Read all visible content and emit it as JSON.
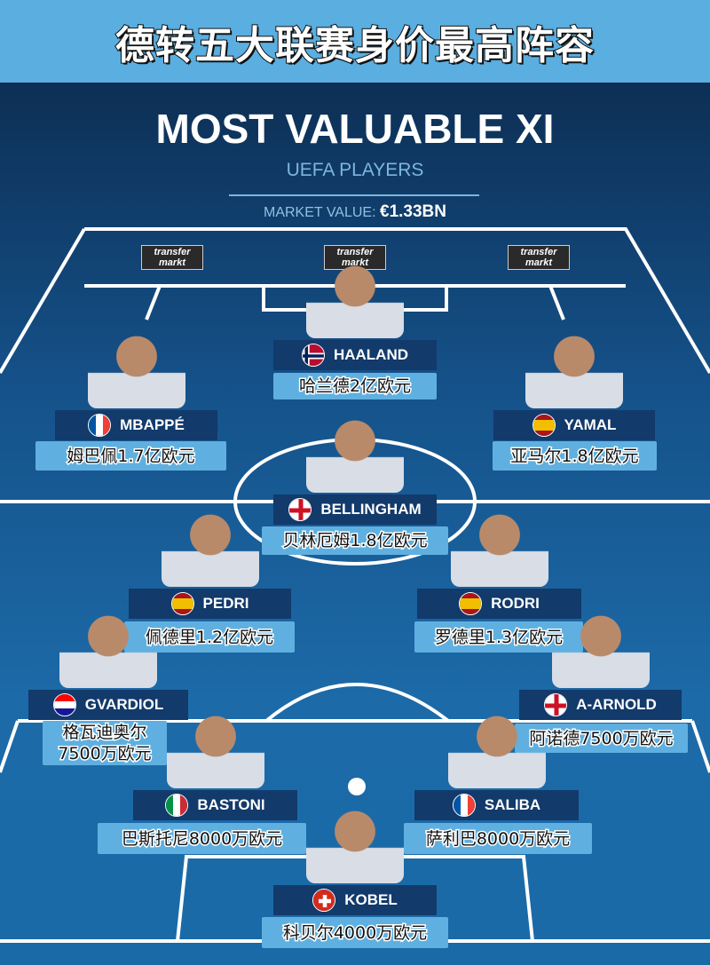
{
  "banner_title": "德转五大联赛身价最高阵容",
  "title": "MOST VALUABLE XI",
  "subtitle": "UEFA PLAYERS",
  "market_label": "MARKET VALUE:",
  "market_value": "€1.33BN",
  "sponsor": "transfer markt",
  "colors": {
    "banner": "#5aaee0",
    "name_bar": "#123a6b",
    "value_box": "#5fb0e0"
  },
  "players": [
    {
      "name": "HAALAND",
      "flag": "norway",
      "value": "哈兰德2亿欧元"
    },
    {
      "name": "MBAPPÉ",
      "flag": "france",
      "value": "姆巴佩1.7亿欧元"
    },
    {
      "name": "YAMAL",
      "flag": "spain",
      "value": "亚马尔1.8亿欧元"
    },
    {
      "name": "BELLINGHAM",
      "flag": "england",
      "value": "贝林厄姆1.8亿欧元"
    },
    {
      "name": "PEDRI",
      "flag": "spain",
      "value": "佩德里1.2亿欧元"
    },
    {
      "name": "RODRI",
      "flag": "spain",
      "value": "罗德里1.3亿欧元"
    },
    {
      "name": "GVARDIOL",
      "flag": "croatia",
      "value": "格瓦迪奥尔7500万欧元"
    },
    {
      "name": "A-ARNOLD",
      "flag": "england",
      "value": "阿诺德7500万欧元"
    },
    {
      "name": "BASTONI",
      "flag": "italy",
      "value": "巴斯托尼8000万欧元"
    },
    {
      "name": "SALIBA",
      "flag": "france",
      "value": "萨利巴8000万欧元"
    },
    {
      "name": "KOBEL",
      "flag": "switzerland",
      "value": "科贝尔4000万欧元"
    }
  ]
}
